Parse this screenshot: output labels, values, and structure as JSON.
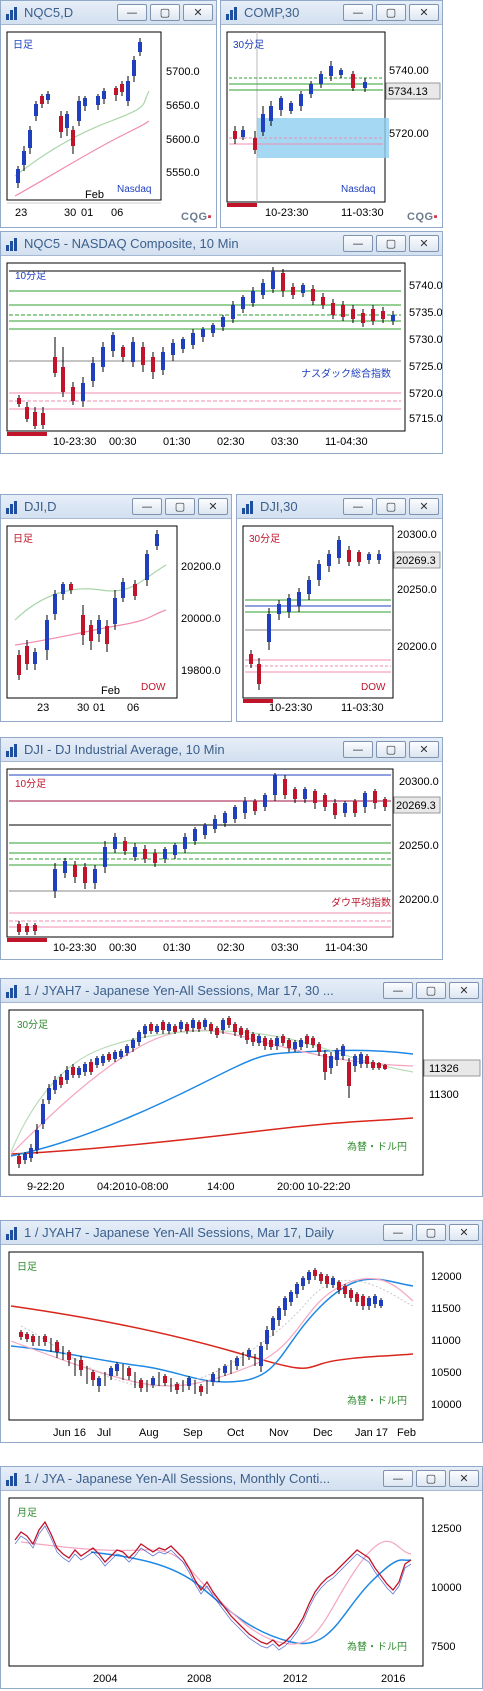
{
  "windows": [
    {
      "id": "w1",
      "title": "NQC5,D",
      "period_label": "日足",
      "market_label": "Nasdaq",
      "y_ticks": [
        "5700.0",
        "5650.0",
        "5600.0",
        "5550.0"
      ],
      "x_ticks": [
        "23",
        "30",
        "01",
        "06"
      ],
      "month_label": "Feb",
      "vendor": "CQG"
    },
    {
      "id": "w2",
      "title": "COMP,30",
      "period_label": "30分足",
      "market_label": "Nasdaq",
      "y_ticks": [
        "5740.00",
        "5720.00"
      ],
      "last_price": "5734.13",
      "x_ticks": [
        "10-23:30",
        "11-03:30"
      ],
      "vendor": "CQG"
    },
    {
      "id": "w3",
      "title": "NQC5 - NASDAQ Composite, 10 Min",
      "period_label": "10分足",
      "index_label": "ナスダック総合指数",
      "y_ticks": [
        "5740.0",
        "5735.0",
        "5730.0",
        "5725.0",
        "5720.0",
        "5715.0"
      ],
      "x_ticks": [
        "10-23:30",
        "00:30",
        "01:30",
        "02:30",
        "03:30",
        "11-04:30"
      ]
    },
    {
      "id": "w4",
      "title": "DJI,D",
      "period_label": "日足",
      "market_label": "DOW",
      "y_ticks": [
        "20200.0",
        "20000.0",
        "19800.0"
      ],
      "x_ticks": [
        "23",
        "30",
        "01",
        "06"
      ],
      "month_label": "Feb"
    },
    {
      "id": "w5",
      "title": "DJI,30",
      "period_label": "30分足",
      "market_label": "DOW",
      "y_ticks": [
        "20300.0",
        "20250.0",
        "20200.0"
      ],
      "last_price": "20269.3",
      "x_ticks": [
        "10-23:30",
        "11-03:30"
      ]
    },
    {
      "id": "w6",
      "title": "DJI - DJ Industrial Average, 10 Min",
      "period_label": "10分足",
      "index_label": "ダウ平均指数",
      "y_ticks": [
        "20300.0",
        "20250.0",
        "20200.0"
      ],
      "last_price": "20269.3",
      "x_ticks": [
        "10-23:30",
        "00:30",
        "01:30",
        "02:30",
        "03:30",
        "11-04:30"
      ]
    },
    {
      "id": "w7",
      "title": "1 / JYAH7 - Japanese Yen-All Sessions, Mar 17, 30 ...",
      "period_label": "30分足",
      "index_label": "為替・ドル円",
      "y_ticks": [
        "11300"
      ],
      "last_price": "11326",
      "x_ticks": [
        "9-22:20",
        "04:20",
        "10-08:00",
        "14:00",
        "20:00",
        "10-22:20"
      ]
    },
    {
      "id": "w8",
      "title": "1 / JYAH7 - Japanese Yen-All Sessions, Mar 17, Daily",
      "period_label": "日足",
      "index_label": "為替・ドル円",
      "y_ticks": [
        "12000",
        "11500",
        "11000",
        "10500",
        "10000"
      ],
      "x_ticks": [
        "Jun 16",
        "Jul",
        "Aug",
        "Sep",
        "Oct",
        "Nov",
        "Dec",
        "Jan 17",
        "Feb"
      ]
    },
    {
      "id": "w9",
      "title": "1 / JYA - Japanese Yen-All Sessions, Monthly Conti...",
      "period_label": "月足",
      "index_label": "為替・ドル円",
      "y_ticks": [
        "12500",
        "10000",
        "7500"
      ],
      "x_ticks": [
        "2004",
        "2008",
        "2012",
        "2016"
      ]
    }
  ],
  "buttons": {
    "minimize": "—",
    "restore": "▢",
    "close": "✕"
  },
  "colors": {
    "up": "#1f3fbf",
    "down": "#c0142a",
    "label_blue": "#1f3fbf",
    "label_red": "#c0142a",
    "label_green": "#2e8b2e"
  }
}
